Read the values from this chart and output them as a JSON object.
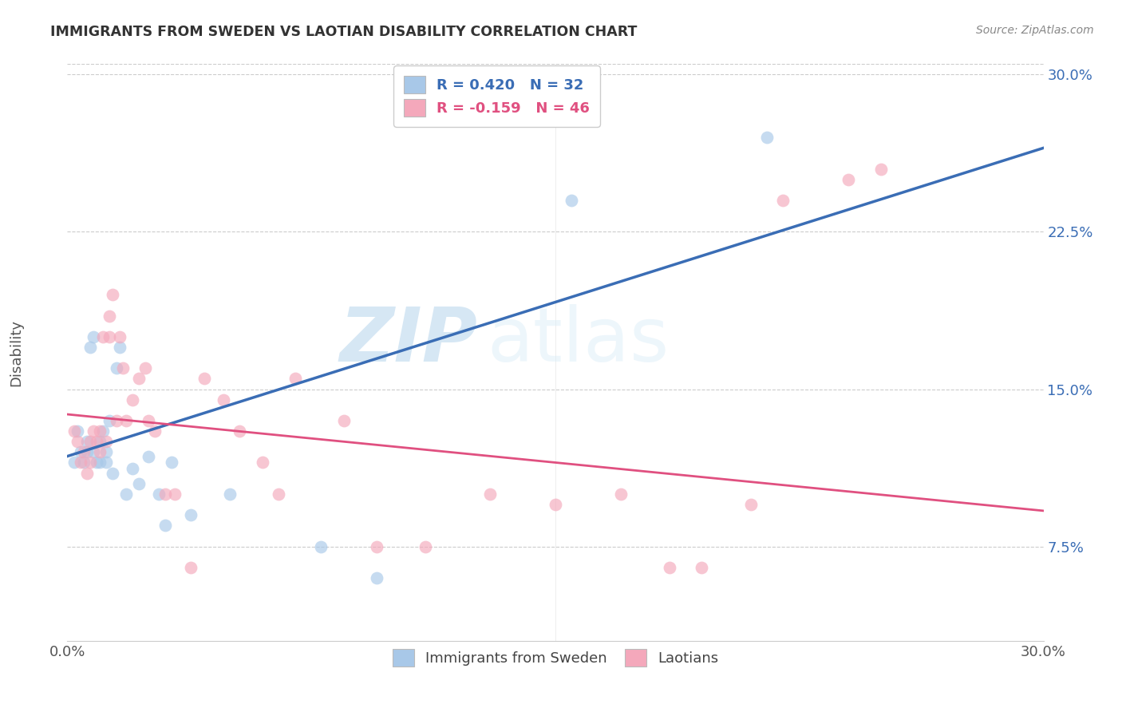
{
  "title": "IMMIGRANTS FROM SWEDEN VS LAOTIAN DISABILITY CORRELATION CHART",
  "source": "Source: ZipAtlas.com",
  "ylabel": "Disability",
  "xmin": 0.0,
  "xmax": 0.3,
  "ymin": 0.03,
  "ymax": 0.305,
  "yticks": [
    0.075,
    0.15,
    0.225,
    0.3
  ],
  "ytick_labels": [
    "7.5%",
    "15.0%",
    "22.5%",
    "30.0%"
  ],
  "xticks": [
    0.0,
    0.05,
    0.1,
    0.15,
    0.2,
    0.25,
    0.3
  ],
  "xtick_labels": [
    "0.0%",
    "",
    "",
    "",
    "",
    "",
    "30.0%"
  ],
  "blue_color": "#a8c8e8",
  "pink_color": "#f4a8bb",
  "blue_line_color": "#3a6db5",
  "pink_line_color": "#e05080",
  "blue_line_x0": 0.0,
  "blue_line_y0": 0.118,
  "blue_line_x1": 0.3,
  "blue_line_y1": 0.265,
  "pink_line_x0": 0.0,
  "pink_line_y0": 0.138,
  "pink_line_x1": 0.3,
  "pink_line_y1": 0.092,
  "watermark_zip": "ZIP",
  "watermark_atlas": "atlas",
  "blue_x": [
    0.002,
    0.003,
    0.004,
    0.005,
    0.006,
    0.006,
    0.007,
    0.008,
    0.008,
    0.009,
    0.01,
    0.01,
    0.011,
    0.012,
    0.012,
    0.013,
    0.014,
    0.015,
    0.016,
    0.018,
    0.02,
    0.022,
    0.025,
    0.028,
    0.03,
    0.032,
    0.038,
    0.05,
    0.078,
    0.095,
    0.155,
    0.215
  ],
  "blue_y": [
    0.115,
    0.13,
    0.12,
    0.115,
    0.12,
    0.125,
    0.17,
    0.175,
    0.12,
    0.115,
    0.125,
    0.115,
    0.13,
    0.115,
    0.12,
    0.135,
    0.11,
    0.16,
    0.17,
    0.1,
    0.112,
    0.105,
    0.118,
    0.1,
    0.085,
    0.115,
    0.09,
    0.1,
    0.075,
    0.06,
    0.24,
    0.27
  ],
  "pink_x": [
    0.002,
    0.003,
    0.004,
    0.005,
    0.006,
    0.007,
    0.007,
    0.008,
    0.009,
    0.01,
    0.01,
    0.011,
    0.012,
    0.013,
    0.013,
    0.014,
    0.015,
    0.016,
    0.017,
    0.018,
    0.02,
    0.022,
    0.024,
    0.025,
    0.027,
    0.03,
    0.033,
    0.038,
    0.042,
    0.048,
    0.053,
    0.06,
    0.065,
    0.07,
    0.085,
    0.095,
    0.11,
    0.13,
    0.15,
    0.17,
    0.185,
    0.195,
    0.21,
    0.22,
    0.24,
    0.25
  ],
  "pink_y": [
    0.13,
    0.125,
    0.115,
    0.12,
    0.11,
    0.125,
    0.115,
    0.13,
    0.125,
    0.12,
    0.13,
    0.175,
    0.125,
    0.185,
    0.175,
    0.195,
    0.135,
    0.175,
    0.16,
    0.135,
    0.145,
    0.155,
    0.16,
    0.135,
    0.13,
    0.1,
    0.1,
    0.065,
    0.155,
    0.145,
    0.13,
    0.115,
    0.1,
    0.155,
    0.135,
    0.075,
    0.075,
    0.1,
    0.095,
    0.1,
    0.065,
    0.065,
    0.095,
    0.24,
    0.25,
    0.255
  ]
}
